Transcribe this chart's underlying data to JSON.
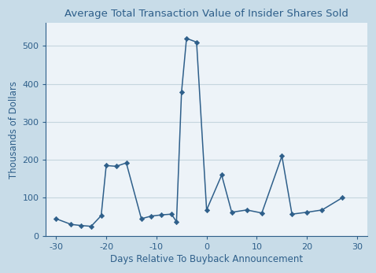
{
  "title": "Average Total Transaction Value of Insider Shares Sold",
  "xlabel": "Days Relative To Buyback Announcement",
  "ylabel": "Thousands of Dollars",
  "x_data": [
    -30,
    -27,
    -25,
    -23,
    -21,
    -20,
    -18,
    -16,
    -13,
    -11,
    -9,
    -7,
    -6,
    -5,
    -4,
    -2,
    0,
    3,
    5,
    8,
    11,
    15,
    17,
    20,
    23,
    27
  ],
  "y_data": [
    45,
    30,
    27,
    25,
    53,
    185,
    183,
    192,
    45,
    52,
    55,
    57,
    37,
    378,
    520,
    510,
    68,
    160,
    62,
    68,
    60,
    210,
    57,
    62,
    68,
    100
  ],
  "line_color": "#2e5f8a",
  "xlim": [
    -32,
    32
  ],
  "ylim": [
    0,
    560
  ],
  "yticks": [
    0,
    100,
    200,
    300,
    400,
    500
  ],
  "xticks": [
    -30,
    -20,
    -10,
    0,
    10,
    20,
    30
  ],
  "outer_bg": "#c8dce8",
  "inner_bg": "#edf3f8",
  "grid_color": "#c5d5de",
  "title_color": "#2e5f8a",
  "label_color": "#2e5f8a",
  "tick_color": "#2e5f8a"
}
